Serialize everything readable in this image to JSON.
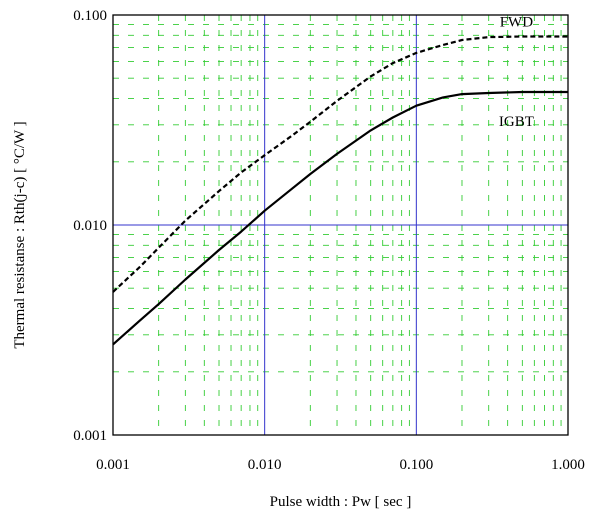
{
  "chart_data": {
    "type": "line",
    "title": "",
    "xlabel": "Pulse width  :  Pw  [ sec ]",
    "ylabel": "Thermal resistanse  :  Rth(j-c)  [ °C/W ]",
    "xscale": "log",
    "yscale": "log",
    "xlim": [
      0.001,
      1.0
    ],
    "ylim": [
      0.001,
      0.1
    ],
    "xticks": [
      {
        "value": 0.001,
        "label": "0.001"
      },
      {
        "value": 0.01,
        "label": "0.010"
      },
      {
        "value": 0.1,
        "label": "0.100"
      },
      {
        "value": 1.0,
        "label": "1.000"
      }
    ],
    "yticks": [
      {
        "value": 0.001,
        "label": "0.001"
      },
      {
        "value": 0.01,
        "label": "0.010"
      },
      {
        "value": 0.1,
        "label": "0.100"
      }
    ],
    "grid": {
      "major": true,
      "minor": true
    },
    "colors": {
      "major_grid": "#3333cc",
      "minor_grid": "#33cc33",
      "series": "#000000",
      "frame": "#000000"
    },
    "series": [
      {
        "name": "FWD",
        "style": "dashed",
        "x": [
          0.001,
          0.0015,
          0.002,
          0.003,
          0.005,
          0.007,
          0.01,
          0.015,
          0.02,
          0.03,
          0.05,
          0.07,
          0.1,
          0.15,
          0.2,
          0.3,
          0.5,
          0.7,
          1.0
        ],
        "y": [
          0.0048,
          0.0063,
          0.0078,
          0.0105,
          0.0145,
          0.0178,
          0.0215,
          0.0265,
          0.031,
          0.039,
          0.051,
          0.059,
          0.066,
          0.072,
          0.076,
          0.0785,
          0.079,
          0.079,
          0.079
        ]
      },
      {
        "name": "IGBT",
        "style": "solid",
        "x": [
          0.001,
          0.0015,
          0.002,
          0.003,
          0.005,
          0.007,
          0.01,
          0.015,
          0.02,
          0.03,
          0.05,
          0.07,
          0.1,
          0.15,
          0.2,
          0.3,
          0.5,
          0.7,
          1.0
        ],
        "y": [
          0.0027,
          0.0035,
          0.0042,
          0.0055,
          0.0076,
          0.0093,
          0.0117,
          0.0148,
          0.0175,
          0.0218,
          0.0282,
          0.0325,
          0.037,
          0.0405,
          0.042,
          0.0425,
          0.043,
          0.043,
          0.043
        ]
      }
    ],
    "annotations": [
      {
        "text": "FWD",
        "series": "FWD"
      },
      {
        "text": "IGBT",
        "series": "IGBT"
      }
    ]
  }
}
